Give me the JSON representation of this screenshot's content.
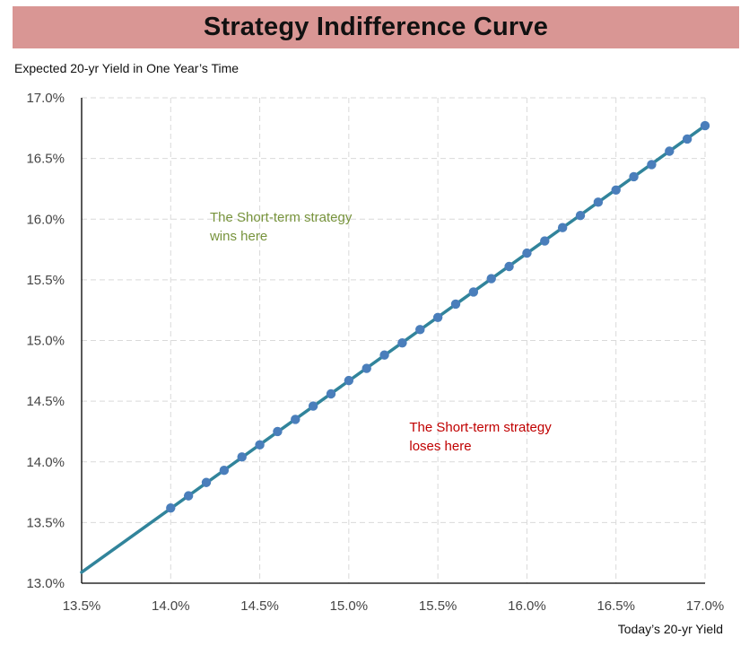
{
  "chart_data": {
    "type": "line",
    "title": "Strategy Indifference Curve",
    "ylabel": "Expected 20-yr Yield in One Year’s Time",
    "xlabel": "Today’s 20-yr Yield",
    "xlim": [
      13.5,
      17.0
    ],
    "ylim": [
      13.0,
      17.0
    ],
    "x_ticks": [
      "13.5%",
      "14.0%",
      "14.5%",
      "15.0%",
      "15.5%",
      "16.0%",
      "16.5%",
      "17.0%"
    ],
    "y_ticks": [
      "13.0%",
      "13.5%",
      "14.0%",
      "14.5%",
      "15.0%",
      "15.5%",
      "16.0%",
      "16.5%",
      "17.0%"
    ],
    "x_tick_values": [
      13.5,
      14.0,
      14.5,
      15.0,
      15.5,
      16.0,
      16.5,
      17.0
    ],
    "y_tick_values": [
      13.0,
      13.5,
      14.0,
      14.5,
      15.0,
      15.5,
      16.0,
      16.5,
      17.0
    ],
    "grid": true,
    "series": [
      {
        "color": "#31849b",
        "line": {
          "x": [
            13.5,
            17.0
          ],
          "y": [
            13.09,
            16.77
          ]
        },
        "markers": {
          "x": [
            14.0,
            14.1,
            14.2,
            14.3,
            14.4,
            14.5,
            14.6,
            14.7,
            14.8,
            14.9,
            15.0,
            15.1,
            15.2,
            15.3,
            15.4,
            15.5,
            15.6,
            15.7,
            15.8,
            15.9,
            16.0,
            16.1,
            16.2,
            16.3,
            16.4,
            16.5,
            16.6,
            16.7,
            16.8,
            16.9,
            17.0
          ],
          "y": [
            13.62,
            13.72,
            13.83,
            13.93,
            14.04,
            14.14,
            14.25,
            14.35,
            14.46,
            14.56,
            14.67,
            14.77,
            14.88,
            14.98,
            15.09,
            15.19,
            15.3,
            15.4,
            15.51,
            15.61,
            15.72,
            15.82,
            15.93,
            16.03,
            16.14,
            16.24,
            16.35,
            16.45,
            16.56,
            16.66,
            16.77
          ]
        },
        "marker_color": "#4a7ebb"
      }
    ],
    "annotations": [
      {
        "lines": [
          "The Short-term strategy",
          "wins here"
        ],
        "x": 14.22,
        "y": 15.98,
        "color": "#77933c"
      },
      {
        "lines": [
          "The Short-term strategy",
          "loses here"
        ],
        "x": 15.34,
        "y": 14.25,
        "color": "#c00000"
      }
    ]
  }
}
